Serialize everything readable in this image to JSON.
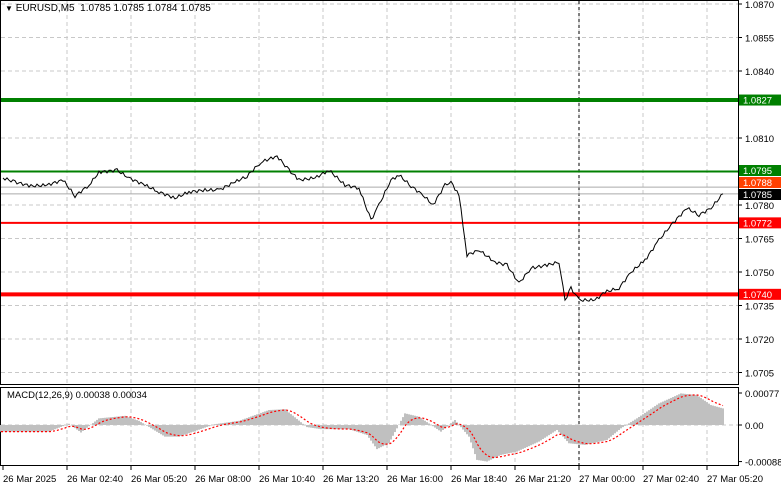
{
  "header": {
    "symbol_label": "EURUSD,M5",
    "ohlc": "1.0785 1.0785 1.0784 1.0785",
    "menu_icon": "triangle-down-icon"
  },
  "macd_label": "MACD(12,26,9) 0.00038 0.00034",
  "colors": {
    "price_line": "#000000",
    "support_resistance_green": "#008000",
    "support_resistance_red": "#ff0000",
    "histogram": "#c0c0c0",
    "signal": "#ff0000",
    "current_price_label": "#000000",
    "ask_label": "#ff4000"
  },
  "chart_data": [
    {
      "type": "line",
      "title": "EURUSD,M5",
      "ylim": [
        1.07,
        1.0872
      ],
      "y_ticks": [
        "1.0870",
        "1.0855",
        "1.0840",
        "1.0810",
        "1.0780",
        "1.0765",
        "1.0750",
        "1.0735",
        "1.0720",
        "1.0705"
      ],
      "x_ticks": [
        "26 Mar 2025",
        "26 Mar 02:40",
        "26 Mar 05:20",
        "26 Mar 08:00",
        "26 Mar 10:40",
        "26 Mar 13:20",
        "26 Mar 16:00",
        "26 Mar 18:40",
        "26 Mar 21:20",
        "27 Mar 00:00",
        "27 Mar 02:40",
        "27 Mar 05:20"
      ],
      "grid": true,
      "levels": [
        {
          "value": "1.0827",
          "color": "#008000",
          "thick": true
        },
        {
          "value": "1.0795",
          "color": "#008000",
          "thick": false
        },
        {
          "value": "1.0772",
          "color": "#ff0000",
          "thick": false
        },
        {
          "value": "1.0740",
          "color": "#ff0000",
          "thick": true
        }
      ],
      "price_lines": [
        {
          "value": "1.0788",
          "color": "#ff4000"
        },
        {
          "value": "1.0785",
          "color": "#000000"
        }
      ],
      "vertical_marker": "27 Mar 00:00",
      "series": [
        {
          "points": [
            [
              "26 00:00",
              1.07921
            ],
            [
              "26 00:30",
              1.07903
            ],
            [
              "26 01:10",
              1.07885
            ],
            [
              "26 01:50",
              1.07889
            ],
            [
              "26 02:30",
              1.07912
            ],
            [
              "26 03:00",
              1.0784
            ],
            [
              "26 03:35",
              1.07889
            ],
            [
              "26 04:00",
              1.07947
            ],
            [
              "26 04:45",
              1.07956
            ],
            [
              "26 05:15",
              1.07921
            ],
            [
              "26 05:55",
              1.07889
            ],
            [
              "26 06:30",
              1.07858
            ],
            [
              "26 07:10",
              1.07831
            ],
            [
              "26 07:45",
              1.07858
            ],
            [
              "26 08:25",
              1.07867
            ],
            [
              "26 09:00",
              1.07867
            ],
            [
              "26 09:40",
              1.07903
            ],
            [
              "26 10:10",
              1.07929
            ],
            [
              "26 10:45",
              1.07992
            ],
            [
              "26 11:25",
              1.08019
            ],
            [
              "26 11:55",
              1.07956
            ],
            [
              "26 12:20",
              1.07912
            ],
            [
              "26 13:00",
              1.07921
            ],
            [
              "26 13:35",
              1.07956
            ],
            [
              "26 14:15",
              1.07889
            ],
            [
              "26 14:50",
              1.07876
            ],
            [
              "26 15:20",
              1.07732
            ],
            [
              "26 15:40",
              1.078
            ],
            [
              "26 16:10",
              1.07912
            ],
            [
              "26 16:30",
              1.07934
            ],
            [
              "26 17:00",
              1.07885
            ],
            [
              "26 17:30",
              1.07844
            ],
            [
              "26 17:55",
              1.078
            ],
            [
              "26 18:25",
              1.07889
            ],
            [
              "26 18:40",
              1.07903
            ],
            [
              "26 19:00",
              1.07844
            ],
            [
              "26 19:20",
              1.07576
            ],
            [
              "26 19:50",
              1.07598
            ],
            [
              "26 20:30",
              1.07544
            ],
            [
              "26 21:00",
              1.07531
            ],
            [
              "26 21:30",
              1.0745
            ],
            [
              "26 22:00",
              1.07517
            ],
            [
              "26 22:40",
              1.07531
            ],
            [
              "26 23:10",
              1.07544
            ],
            [
              "26 23:25",
              1.07374
            ],
            [
              "26 23:40",
              1.07428
            ],
            [
              "27 00:00",
              1.07374
            ],
            [
              "27 00:40",
              1.07374
            ],
            [
              "27 01:05",
              1.0741
            ],
            [
              "27 01:40",
              1.07428
            ],
            [
              "27 02:10",
              1.07499
            ],
            [
              "27 02:45",
              1.07553
            ],
            [
              "27 03:20",
              1.07643
            ],
            [
              "27 03:50",
              1.0771
            ],
            [
              "27 04:30",
              1.07786
            ],
            [
              "27 05:00",
              1.07755
            ],
            [
              "27 05:30",
              1.07786
            ],
            [
              "27 06:00",
              1.0785
            ]
          ]
        }
      ]
    },
    {
      "type": "bar",
      "title": "MACD(12,26,9)",
      "ylim": [
        -0.00095,
        0.00085
      ],
      "y_ticks": [
        "0.00077",
        "0.00",
        "-0.00088"
      ],
      "histogram": [
        [
          "26 00:00",
          -0.00016
        ],
        [
          "26 01:55",
          -0.00016
        ],
        [
          "26 02:45",
          3e-05
        ],
        [
          "26 03:15",
          -0.00018
        ],
        [
          "26 04:00",
          0.00016
        ],
        [
          "26 05:05",
          0.00022
        ],
        [
          "26 05:40",
          0.0001
        ],
        [
          "26 06:45",
          -0.00028
        ],
        [
          "26 07:20",
          -0.00028
        ],
        [
          "26 08:50",
          2e-05
        ],
        [
          "26 09:50",
          0.0001
        ],
        [
          "26 11:05",
          0.00036
        ],
        [
          "26 11:45",
          0.00038
        ],
        [
          "26 12:40",
          -5e-05
        ],
        [
          "26 13:15",
          -0.0001
        ],
        [
          "26 14:25",
          -0.0001
        ],
        [
          "26 15:10",
          -0.00024
        ],
        [
          "26 15:35",
          -0.00058
        ],
        [
          "26 16:05",
          -0.00044
        ],
        [
          "26 16:45",
          0.00028
        ],
        [
          "26 17:20",
          0.0002
        ],
        [
          "26 18:15",
          -0.00016
        ],
        [
          "26 18:50",
          0.00012
        ],
        [
          "26 19:25",
          -0.00028
        ],
        [
          "26 19:45",
          -0.00084
        ],
        [
          "26 20:10",
          -0.00088
        ],
        [
          "26 20:45",
          -0.00072
        ],
        [
          "26 21:25",
          -0.00064
        ],
        [
          "26 22:20",
          -0.0004
        ],
        [
          "26 23:05",
          -0.00012
        ],
        [
          "26 23:35",
          -0.00044
        ],
        [
          "27 00:15",
          -0.00048
        ],
        [
          "27 01:10",
          -0.00036
        ],
        [
          "27 01:45",
          -8e-05
        ],
        [
          "27 02:25",
          0.00016
        ],
        [
          "27 03:20",
          0.00052
        ],
        [
          "27 04:15",
          0.00076
        ],
        [
          "27 04:55",
          0.00072
        ],
        [
          "27 05:30",
          0.00048
        ],
        [
          "27 06:00",
          0.0004
        ]
      ]
    }
  ]
}
